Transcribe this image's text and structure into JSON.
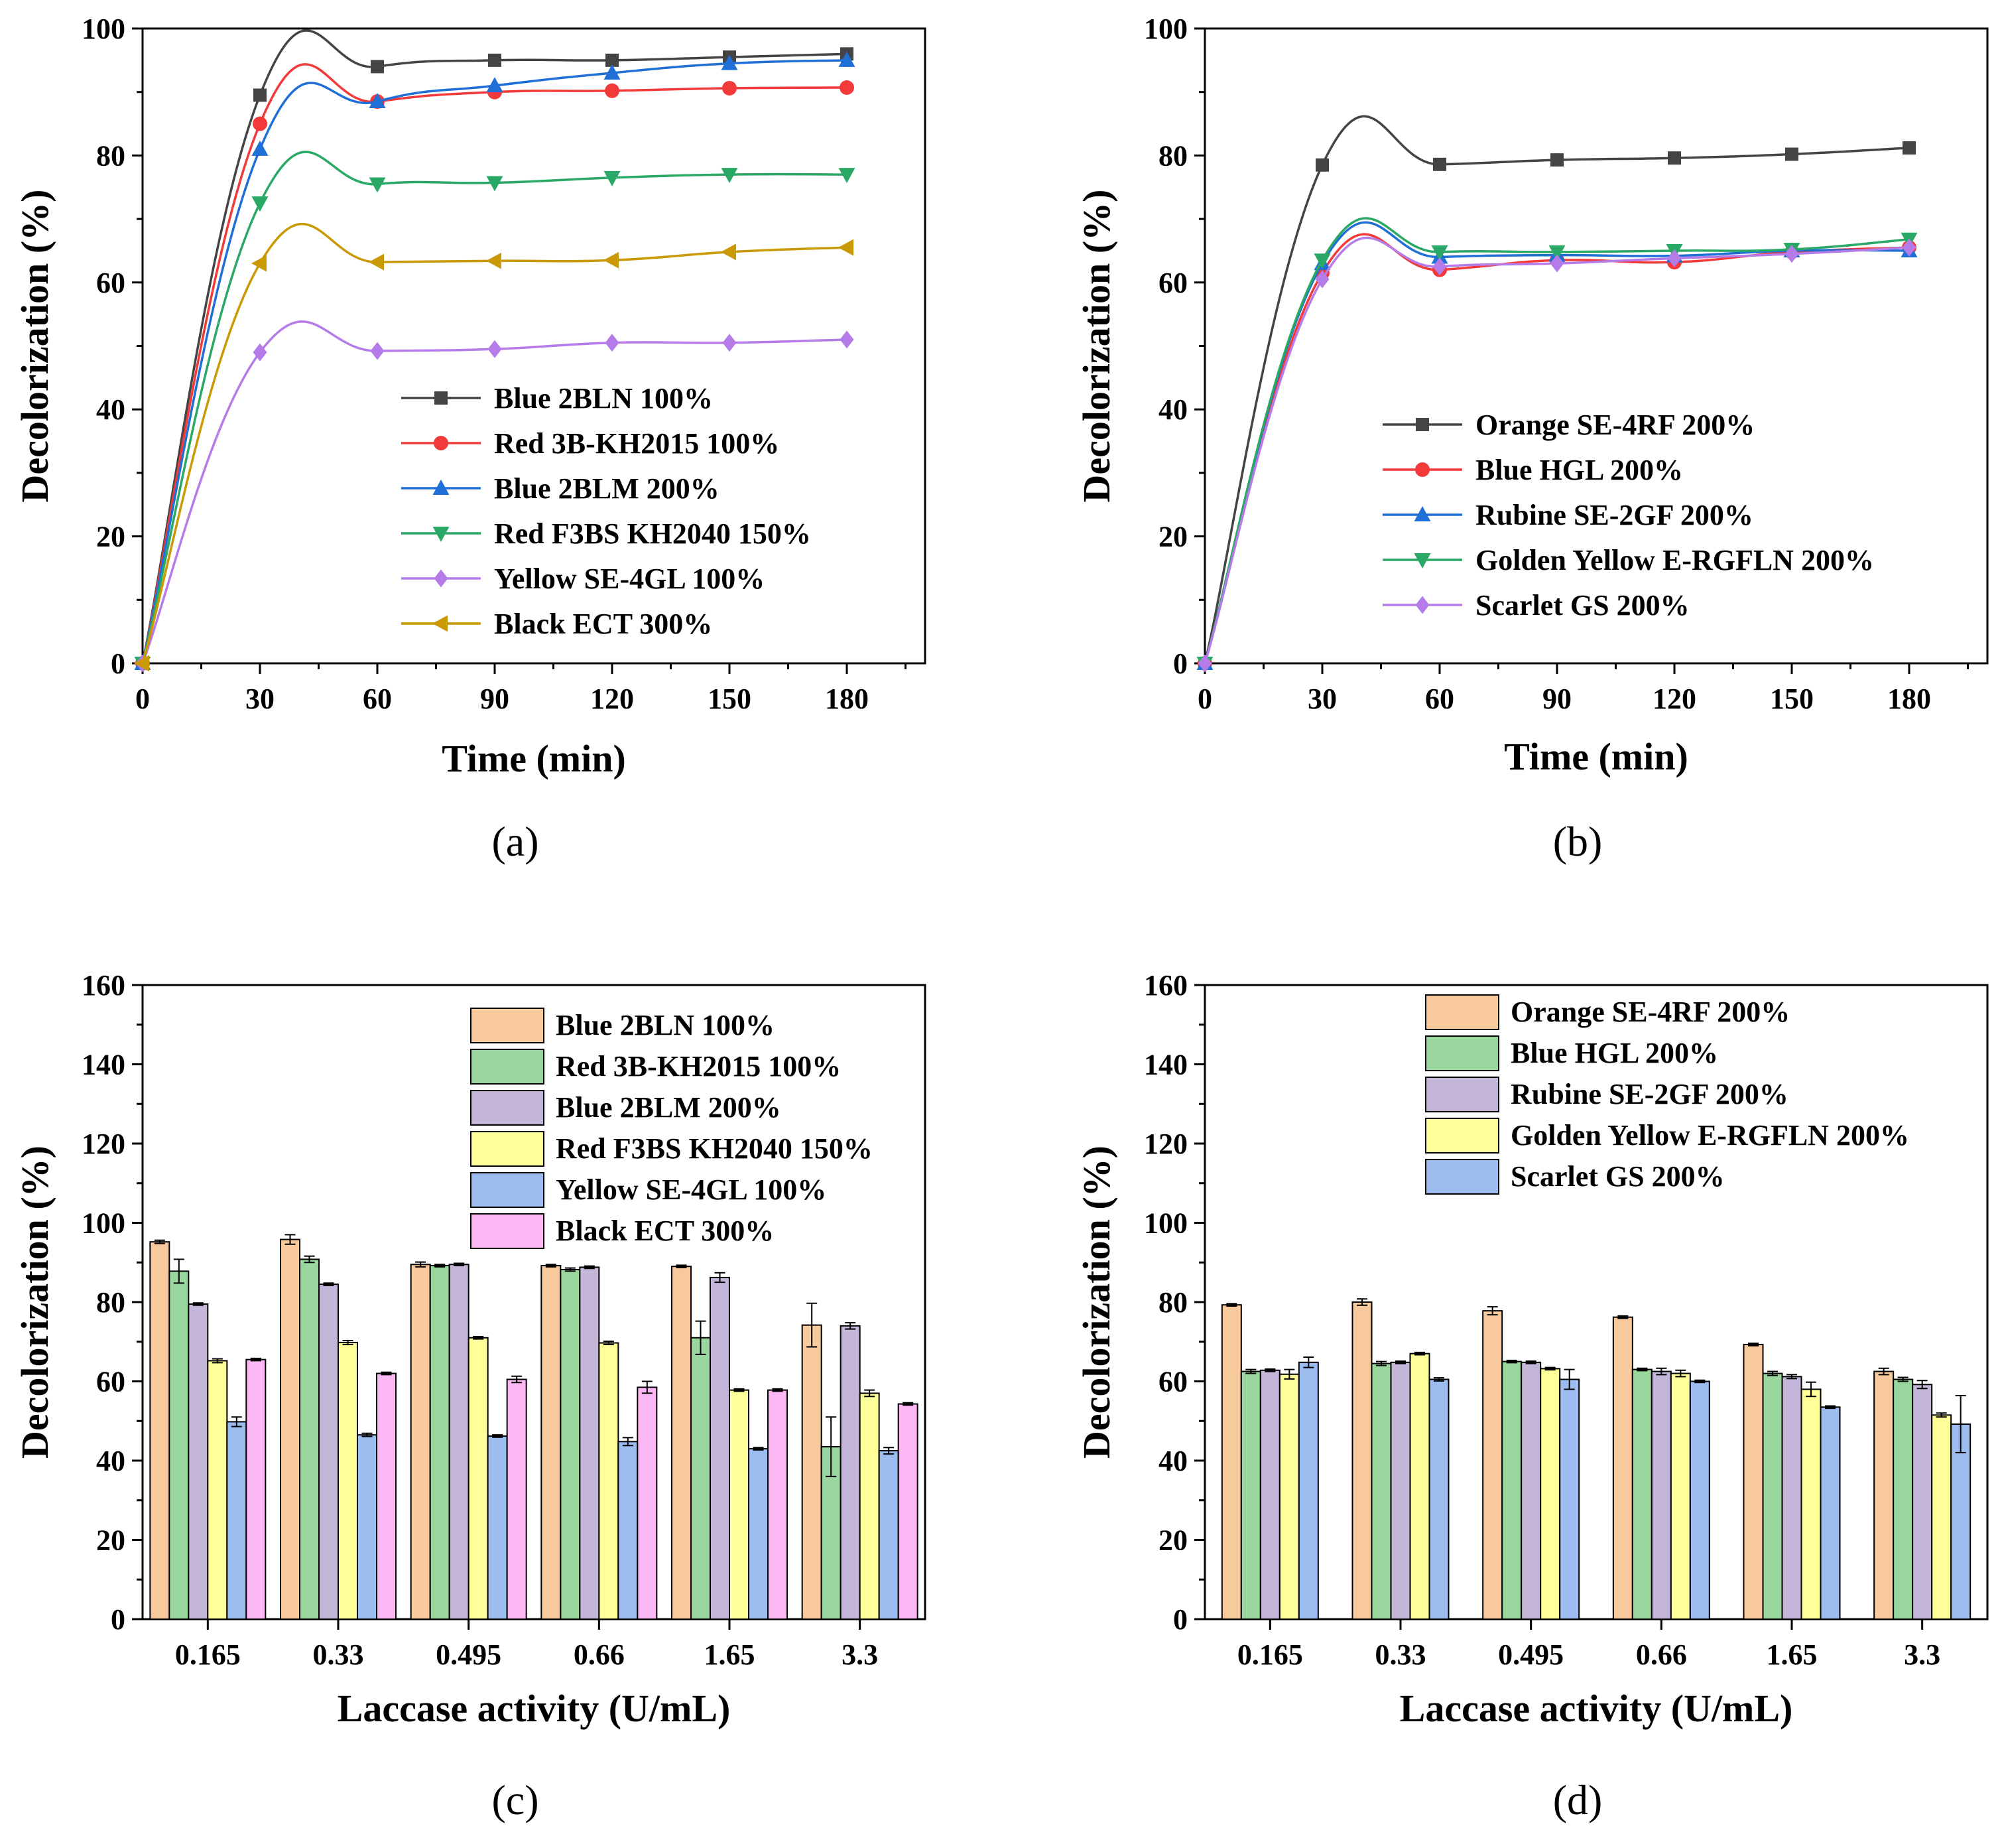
{
  "chart_data": [
    {
      "panel": "(a)",
      "type": "line",
      "xlabel": "Time (min)",
      "ylabel": "Decolorization (%)",
      "xlim": [
        0,
        200
      ],
      "ylim": [
        0,
        100
      ],
      "xticks": [
        0,
        30,
        60,
        90,
        120,
        150,
        180
      ],
      "yticks": [
        0,
        20,
        40,
        60,
        80,
        100
      ],
      "legend_position": "bottom-right",
      "x": [
        0,
        30,
        60,
        90,
        120,
        150,
        180
      ],
      "series": [
        {
          "name": "Blue 2BLN 100%",
          "color": "#444444",
          "marker": "square",
          "values": [
            0,
            89.5,
            94,
            95,
            95,
            95.5,
            96
          ]
        },
        {
          "name": "Red 3B-KH2015 100%",
          "color": "#f23a3a",
          "marker": "circle",
          "values": [
            0,
            85,
            88.5,
            90,
            90.2,
            90.6,
            90.7
          ]
        },
        {
          "name": "Blue 2BLM 200%",
          "color": "#1f6fd6",
          "marker": "triangle-up",
          "values": [
            0,
            81,
            88.5,
            91,
            93,
            94.5,
            95
          ]
        },
        {
          "name": "Red F3BS KH2040 150%",
          "color": "#2aa866",
          "marker": "triangle-down",
          "values": [
            0,
            72.5,
            75.5,
            75.7,
            76.5,
            77,
            77
          ]
        },
        {
          "name": "Yellow SE-4GL 100%",
          "color": "#b57be8",
          "marker": "diamond",
          "values": [
            0,
            49,
            49.2,
            49.5,
            50.5,
            50.5,
            51
          ]
        },
        {
          "name": "Black ECT 300%",
          "color": "#c99a06",
          "marker": "triangle-left",
          "values": [
            0,
            63,
            63.2,
            63.4,
            63.5,
            64.8,
            65.5
          ]
        }
      ]
    },
    {
      "panel": "(b)",
      "type": "line",
      "xlabel": "Time (min)",
      "ylabel": "Decolorization (%)",
      "xlim": [
        0,
        200
      ],
      "ylim": [
        0,
        100
      ],
      "xticks": [
        0,
        30,
        60,
        90,
        120,
        150,
        180
      ],
      "yticks": [
        0,
        20,
        40,
        60,
        80,
        100
      ],
      "legend_position": "middle",
      "x": [
        0,
        30,
        60,
        90,
        120,
        150,
        180
      ],
      "series": [
        {
          "name": "Orange SE-4RF 200%",
          "color": "#444444",
          "marker": "square",
          "values": [
            0,
            78.5,
            78.6,
            79.3,
            79.6,
            80.2,
            81.2
          ]
        },
        {
          "name": "Blue HGL 200%",
          "color": "#f23a3a",
          "marker": "circle",
          "values": [
            0,
            61.5,
            62,
            63.5,
            63.2,
            64.8,
            65.5
          ]
        },
        {
          "name": "Rubine SE-2GF 200%",
          "color": "#1f6fd6",
          "marker": "triangle-up",
          "values": [
            0,
            63,
            64,
            64.3,
            64.2,
            65,
            65
          ]
        },
        {
          "name": "Golden Yellow E-RGFLN 200%",
          "color": "#2aa866",
          "marker": "triangle-down",
          "values": [
            0,
            63.5,
            64.8,
            64.8,
            65,
            65.2,
            66.8
          ]
        },
        {
          "name": "Scarlet GS 200%",
          "color": "#b57be8",
          "marker": "diamond",
          "values": [
            0,
            60.5,
            62.5,
            63,
            63.8,
            64.5,
            65.5
          ]
        }
      ]
    },
    {
      "panel": "(c)",
      "type": "bar",
      "xlabel": "Laccase activity (U/mL)",
      "ylabel": "Decolorization (%)",
      "ylim": [
        0,
        160
      ],
      "yticks": [
        0,
        20,
        40,
        60,
        80,
        100,
        120,
        140,
        160
      ],
      "legend_position": "top-right",
      "categories": [
        "0.165",
        "0.33",
        "0.495",
        "0.66",
        "1.65",
        "3.3"
      ],
      "series": [
        {
          "name": "Blue 2BLN 100%",
          "color": "#f9c99e",
          "values": [
            95.2,
            95.8,
            89.5,
            89.2,
            89,
            74.2
          ],
          "errors": [
            0.4,
            1.2,
            0.6,
            0.3,
            0.3,
            5.5
          ]
        },
        {
          "name": "Red 3B-KH2015 100%",
          "color": "#9ad79f",
          "values": [
            87.8,
            90.8,
            89.2,
            88.2,
            71,
            43.5
          ],
          "errors": [
            3,
            0.8,
            0.3,
            0.4,
            4.2,
            7.5
          ]
        },
        {
          "name": "Blue 2BLM 200%",
          "color": "#c3b6d8",
          "values": [
            79.5,
            84.5,
            89.5,
            88.8,
            86.2,
            74
          ],
          "errors": [
            0.3,
            0.3,
            0.3,
            0.3,
            1.2,
            0.8
          ]
        },
        {
          "name": "Red F3BS KH2040 150%",
          "color": "#ffff99",
          "values": [
            65.2,
            69.8,
            71,
            69.7,
            57.8,
            57
          ],
          "errors": [
            0.5,
            0.5,
            0.3,
            0.4,
            0.3,
            0.8
          ]
        },
        {
          "name": "Yellow SE-4GL 100%",
          "color": "#9dbcef",
          "values": [
            49.8,
            46.5,
            46.2,
            44.8,
            43,
            42.5
          ],
          "errors": [
            1.2,
            0.4,
            0.3,
            1,
            0.3,
            0.8
          ]
        },
        {
          "name": "Black ECT 300%",
          "color": "#fcb8f5",
          "values": [
            65.5,
            62,
            60.5,
            58.5,
            57.8,
            54.3
          ],
          "errors": [
            0.3,
            0.3,
            0.8,
            1.5,
            0.3,
            0.3
          ]
        }
      ]
    },
    {
      "panel": "(d)",
      "type": "bar",
      "xlabel": "Laccase activity (U/mL)",
      "ylabel": "Decolorization (%)",
      "ylim": [
        0,
        160
      ],
      "yticks": [
        0,
        20,
        40,
        60,
        80,
        100,
        120,
        140,
        160
      ],
      "legend_position": "top-right",
      "categories": [
        "0.165",
        "0.33",
        "0.495",
        "0.66",
        "1.65",
        "3.3"
      ],
      "series": [
        {
          "name": "Orange SE-4RF 200%",
          "color": "#f9c99e",
          "values": [
            79.3,
            80,
            77.8,
            76.2,
            69.3,
            62.5
          ],
          "errors": [
            0.3,
            0.8,
            1,
            0.3,
            0.3,
            0.8
          ]
        },
        {
          "name": "Blue HGL 200%",
          "color": "#9ad79f",
          "values": [
            62.5,
            64.5,
            65,
            63,
            62,
            60.5
          ],
          "errors": [
            0.5,
            0.5,
            0.3,
            0.3,
            0.5,
            0.5
          ]
        },
        {
          "name": "Rubine SE-2GF 200%",
          "color": "#c3b6d8",
          "values": [
            62.8,
            64.8,
            64.8,
            62.5,
            61.2,
            59.2
          ],
          "errors": [
            0.3,
            0.3,
            0.3,
            0.8,
            0.5,
            1
          ]
        },
        {
          "name": "Golden Yellow E-RGFLN 200%",
          "color": "#ffff99",
          "values": [
            61.8,
            67,
            63.2,
            62,
            58,
            51.5
          ],
          "errors": [
            1.2,
            0.3,
            0.3,
            0.8,
            1.8,
            0.5
          ]
        },
        {
          "name": "Scarlet GS 200%",
          "color": "#9dbcef",
          "values": [
            64.8,
            60.5,
            60.5,
            60,
            53.5,
            49.2
          ],
          "errors": [
            1.3,
            0.4,
            2.5,
            0.3,
            0.3,
            7.2
          ]
        }
      ]
    }
  ]
}
